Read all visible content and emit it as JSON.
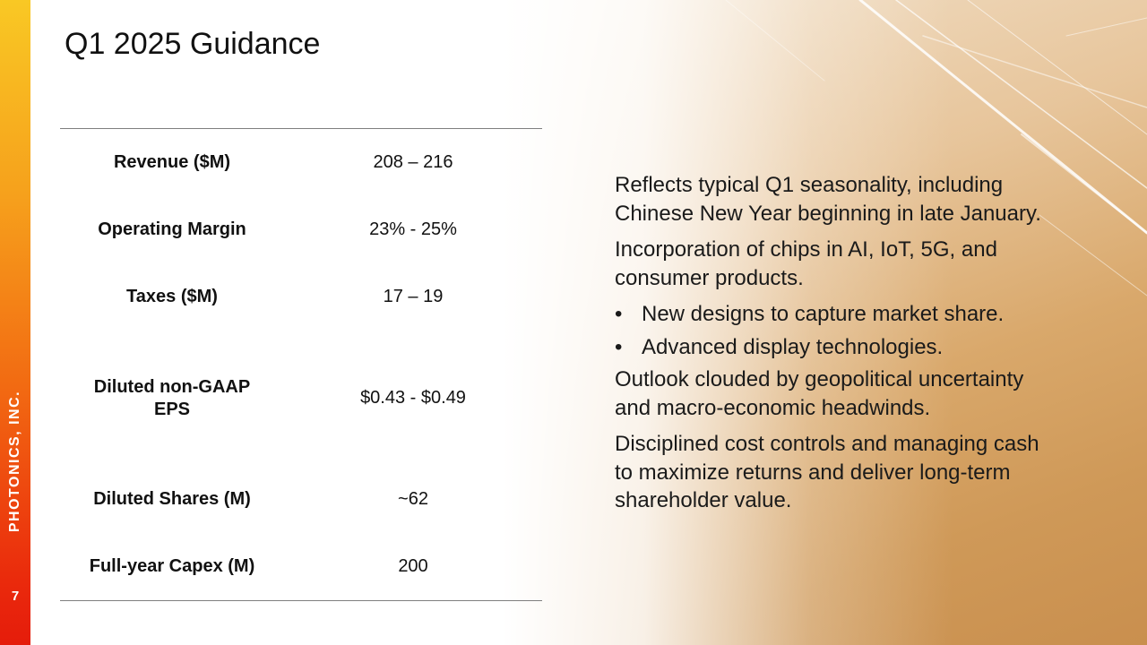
{
  "sidebar": {
    "company": "PHOTONICS, INC.",
    "page_number": "7"
  },
  "title": "Q1 2025 Guidance",
  "guidance_table": {
    "rows": [
      {
        "label": "Revenue ($M)",
        "value": "208 – 216"
      },
      {
        "label": "Operating Margin",
        "value": "23% - 25%"
      },
      {
        "label": "Taxes ($M)",
        "value": "17 – 19"
      },
      {
        "label": "Diluted non-GAAP EPS",
        "value": "$0.43 - $0.49"
      },
      {
        "label": "Diluted Shares (M)",
        "value": "~62"
      },
      {
        "label": "Full-year Capex (M)",
        "value": "200"
      }
    ]
  },
  "commentary": {
    "p1": "Reflects typical Q1 seasonality, including Chinese New Year beginning in late January.",
    "p2": "Incorporation of chips in AI, IoT, 5G, and consumer products.",
    "bullets": [
      "New designs to capture market share.",
      "Advanced display technologies."
    ],
    "bullet_symbol": "•",
    "p3": "Outlook clouded by geopolitical uncertainty and macro-economic headwinds.",
    "p4": "Disciplined cost controls and managing cash to maximize returns and deliver long-term shareholder value."
  },
  "colors": {
    "sidebar_top": "#f9c824",
    "sidebar_bottom": "#e51c0b",
    "background_art": "#d9a86b",
    "rule": "#7f7f7f"
  }
}
